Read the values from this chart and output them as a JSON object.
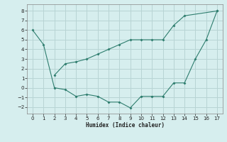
{
  "xlabel": "Humidex (Indice chaleur)",
  "background_color": "#d6eeee",
  "grid_color": "#b8d4d4",
  "line_color": "#2e7d6e",
  "xlim": [
    -0.5,
    17.5
  ],
  "ylim": [
    -2.7,
    8.7
  ],
  "xticks": [
    0,
    1,
    2,
    3,
    4,
    5,
    6,
    7,
    8,
    9,
    10,
    11,
    12,
    13,
    14,
    15,
    16,
    17
  ],
  "yticks": [
    -2,
    -1,
    0,
    1,
    2,
    3,
    4,
    5,
    6,
    7,
    8
  ],
  "series1_x": [
    0,
    1,
    2,
    3,
    4,
    5,
    6,
    7,
    8,
    9,
    10,
    11,
    12,
    13,
    14,
    15,
    16,
    17
  ],
  "series1_y": [
    6.0,
    4.5,
    0.0,
    -0.2,
    -0.9,
    -0.7,
    -0.9,
    -1.5,
    -1.5,
    -2.1,
    -0.9,
    -0.9,
    -0.9,
    0.5,
    0.5,
    3.0,
    5.0,
    8.0
  ],
  "series2_x": [
    2,
    3,
    4,
    5,
    6,
    7,
    8,
    9,
    10,
    11,
    12,
    13,
    14,
    17
  ],
  "series2_y": [
    1.3,
    2.5,
    2.7,
    3.0,
    3.5,
    4.0,
    4.5,
    5.0,
    5.0,
    5.0,
    5.0,
    6.5,
    7.5,
    8.0
  ]
}
